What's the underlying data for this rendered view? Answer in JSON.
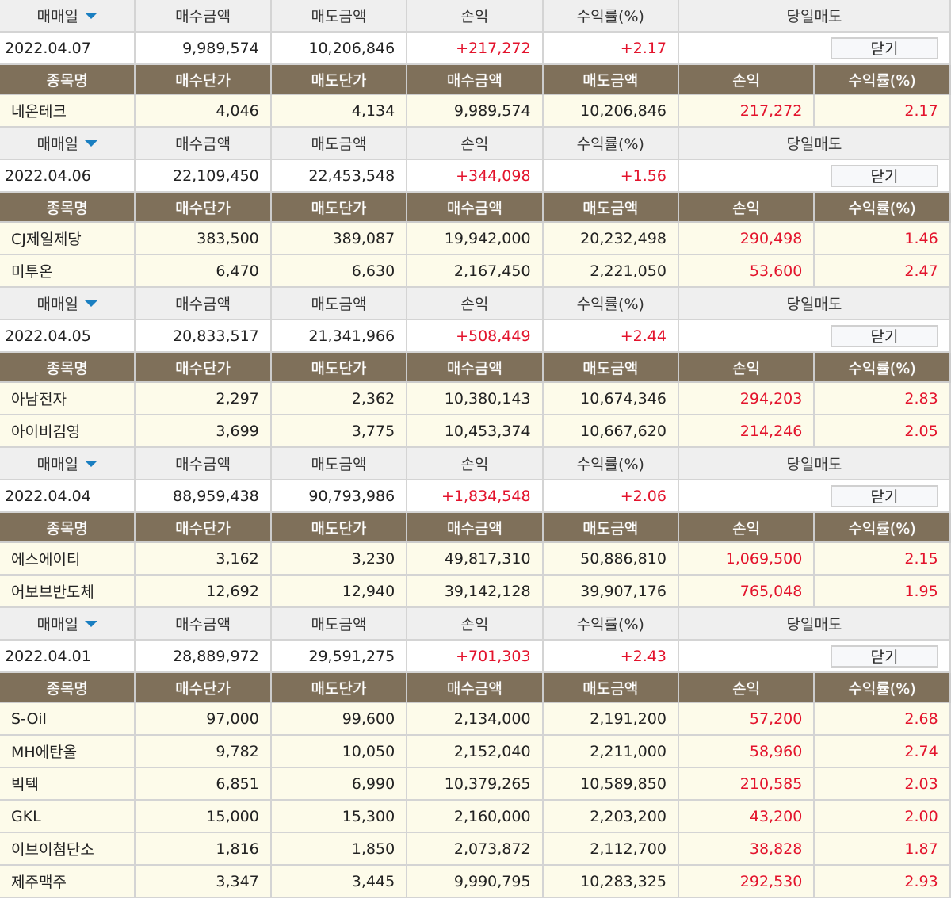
{
  "headers": {
    "date": "매매일",
    "buy_amount": "매수금액",
    "sell_amount": "매도금액",
    "pl": "손익",
    "rate": "수익률(%)",
    "same_day_sell": "당일매도",
    "close_button": "닫기"
  },
  "item_headers": [
    "종목명",
    "매수단가",
    "매도단가",
    "매수금액",
    "매도금액",
    "손익",
    "수익률(%)"
  ],
  "colors": {
    "brown_header": "#7f705a",
    "profit_red": "#e3132c",
    "item_row_bg": "#fdfbea",
    "sort_arrow": "#1a7fc1"
  },
  "groups": [
    {
      "date": "2022.04.07",
      "buy_amount": "9,989,574",
      "sell_amount": "10,206,846",
      "pl": "+217,272",
      "rate": "+2.17",
      "items": [
        [
          "네온테크",
          "4,046",
          "4,134",
          "9,989,574",
          "10,206,846",
          "217,272",
          "2.17"
        ]
      ]
    },
    {
      "date": "2022.04.06",
      "buy_amount": "22,109,450",
      "sell_amount": "22,453,548",
      "pl": "+344,098",
      "rate": "+1.56",
      "items": [
        [
          "CJ제일제당",
          "383,500",
          "389,087",
          "19,942,000",
          "20,232,498",
          "290,498",
          "1.46"
        ],
        [
          "미투온",
          "6,470",
          "6,630",
          "2,167,450",
          "2,221,050",
          "53,600",
          "2.47"
        ]
      ]
    },
    {
      "date": "2022.04.05",
      "buy_amount": "20,833,517",
      "sell_amount": "21,341,966",
      "pl": "+508,449",
      "rate": "+2.44",
      "items": [
        [
          "아남전자",
          "2,297",
          "2,362",
          "10,380,143",
          "10,674,346",
          "294,203",
          "2.83"
        ],
        [
          "아이비김영",
          "3,699",
          "3,775",
          "10,453,374",
          "10,667,620",
          "214,246",
          "2.05"
        ]
      ]
    },
    {
      "date": "2022.04.04",
      "buy_amount": "88,959,438",
      "sell_amount": "90,793,986",
      "pl": "+1,834,548",
      "rate": "+2.06",
      "items": [
        [
          "에스에이티",
          "3,162",
          "3,230",
          "49,817,310",
          "50,886,810",
          "1,069,500",
          "2.15"
        ],
        [
          "어보브반도체",
          "12,692",
          "12,940",
          "39,142,128",
          "39,907,176",
          "765,048",
          "1.95"
        ]
      ]
    },
    {
      "date": "2022.04.01",
      "buy_amount": "28,889,972",
      "sell_amount": "29,591,275",
      "pl": "+701,303",
      "rate": "+2.43",
      "items": [
        [
          "S-Oil",
          "97,000",
          "99,600",
          "2,134,000",
          "2,191,200",
          "57,200",
          "2.68"
        ],
        [
          "MH에탄올",
          "9,782",
          "10,050",
          "2,152,040",
          "2,211,000",
          "58,960",
          "2.74"
        ],
        [
          "빅텍",
          "6,851",
          "6,990",
          "10,379,265",
          "10,589,850",
          "210,585",
          "2.03"
        ],
        [
          "GKL",
          "15,000",
          "15,300",
          "2,160,000",
          "2,203,200",
          "43,200",
          "2.00"
        ],
        [
          "이브이첨단소",
          "1,816",
          "1,850",
          "2,073,872",
          "2,112,700",
          "38,828",
          "1.87"
        ],
        [
          "제주맥주",
          "3,347",
          "3,445",
          "9,990,795",
          "10,283,325",
          "292,530",
          "2.93"
        ]
      ]
    }
  ]
}
